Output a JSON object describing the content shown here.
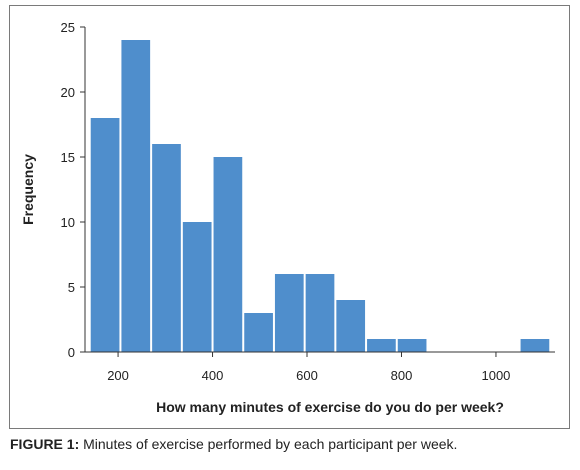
{
  "chart_data": {
    "type": "bar",
    "title": "",
    "xlabel": "How many minutes of exercise do you do per week?",
    "ylabel": "Frequency",
    "bin_width": 65,
    "bins": [
      {
        "start": 140,
        "end": 205,
        "value": 18
      },
      {
        "start": 205,
        "end": 270,
        "value": 24
      },
      {
        "start": 270,
        "end": 335,
        "value": 16
      },
      {
        "start": 335,
        "end": 400,
        "value": 10
      },
      {
        "start": 400,
        "end": 465,
        "value": 15
      },
      {
        "start": 465,
        "end": 530,
        "value": 3
      },
      {
        "start": 530,
        "end": 595,
        "value": 6
      },
      {
        "start": 595,
        "end": 660,
        "value": 6
      },
      {
        "start": 660,
        "end": 725,
        "value": 4
      },
      {
        "start": 725,
        "end": 790,
        "value": 1
      },
      {
        "start": 790,
        "end": 855,
        "value": 1
      },
      {
        "start": 855,
        "end": 920,
        "value": 0
      },
      {
        "start": 920,
        "end": 985,
        "value": 0
      },
      {
        "start": 985,
        "end": 1050,
        "value": 0
      },
      {
        "start": 1050,
        "end": 1115,
        "value": 1
      }
    ],
    "xlim": [
      130,
      1125
    ],
    "ylim": [
      0,
      25
    ],
    "xticks": [
      200,
      400,
      600,
      800,
      1000
    ],
    "yticks": [
      0,
      5,
      10,
      15,
      20,
      25
    ],
    "bar_color": "#4f8ecc",
    "grid": false
  },
  "caption": {
    "label": "FIGURE 1:",
    "text": " Minutes of exercise performed by each participant per week."
  }
}
